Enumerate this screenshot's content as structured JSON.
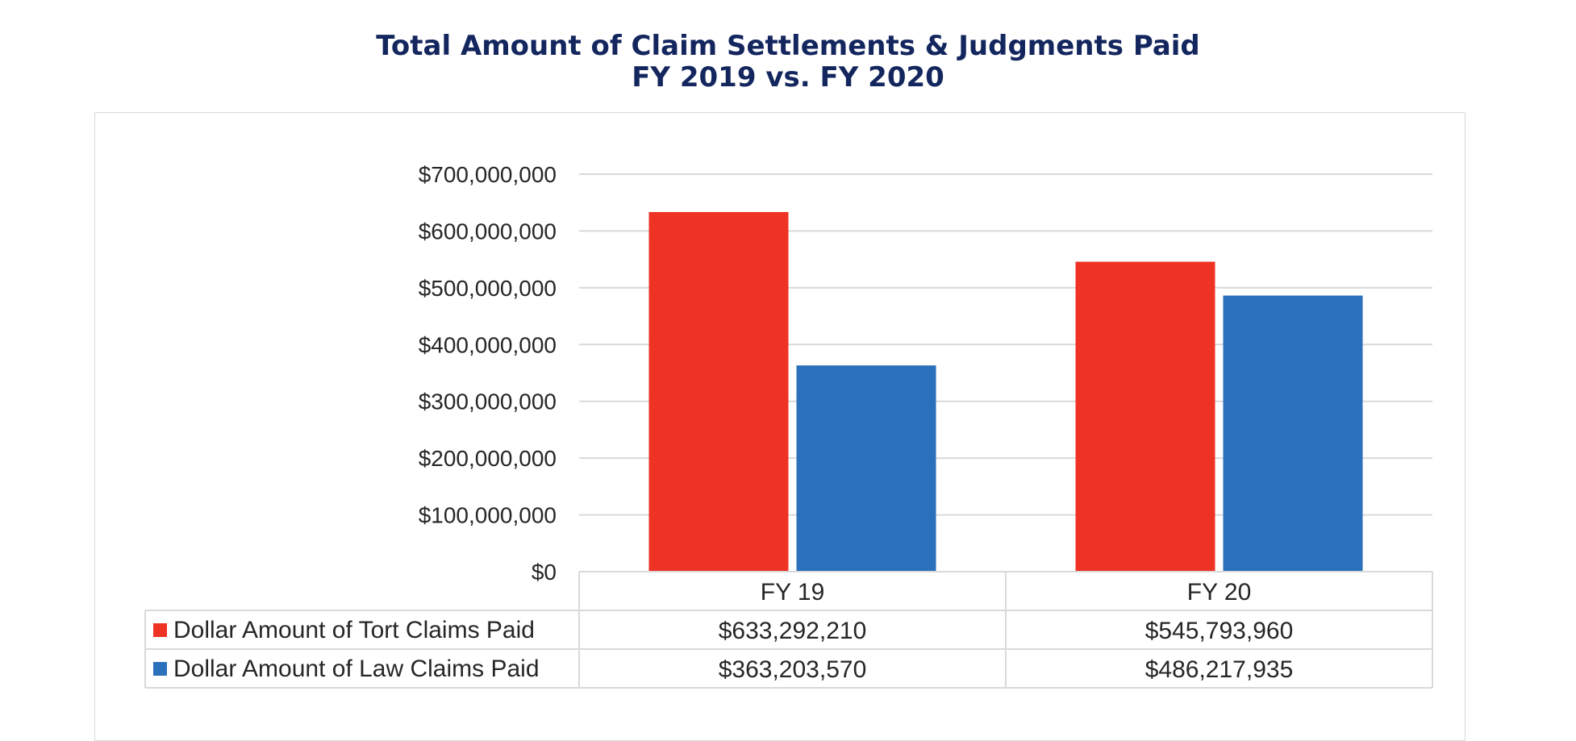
{
  "chart_data": {
    "type": "bar",
    "title": "Total Amount of Claim Settlements & Judgments Paid",
    "subtitle": "FY 2019 vs. FY 2020",
    "categories": [
      "FY 19",
      "FY 20"
    ],
    "series": [
      {
        "name": "Dollar Amount of Tort Claims Paid",
        "values": [
          633292210,
          545793960
        ],
        "value_labels": [
          "$633,292,210",
          "$545,793,960"
        ],
        "color": "#ee3224"
      },
      {
        "name": "Dollar Amount of Law Claims Paid",
        "values": [
          363203570,
          486217935
        ],
        "value_labels": [
          "$363,203,570",
          "$486,217,935"
        ],
        "color": "#2b70bb"
      }
    ],
    "ylim": [
      0,
      700000000
    ],
    "yticks": [
      0,
      100000000,
      200000000,
      300000000,
      400000000,
      500000000,
      600000000,
      700000000
    ],
    "ytick_labels": [
      "$0",
      "$100,000,000",
      "$200,000,000",
      "$300,000,000",
      "$400,000,000",
      "$500,000,000",
      "$600,000,000",
      "$700,000,000"
    ],
    "grid": true,
    "legend_placement": "data-table-below",
    "xlabel": "",
    "ylabel": ""
  },
  "colors": {
    "title": "#13265e",
    "gridline": "#d9d9d9",
    "text": "#262626"
  }
}
